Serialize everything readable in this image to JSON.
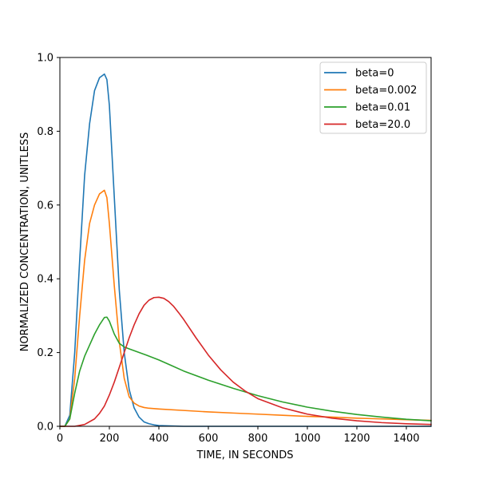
{
  "chart_data": {
    "type": "line",
    "xlabel": "TIME, IN SECONDS",
    "ylabel": "NORMALIZED CONCENTRATION, UNITLESS",
    "xlim": [
      0,
      1500
    ],
    "ylim": [
      0,
      1.0
    ],
    "xticks": [
      0,
      200,
      400,
      600,
      800,
      1000,
      1200,
      1400
    ],
    "yticks": [
      0.0,
      0.2,
      0.4,
      0.6,
      0.8,
      1.0
    ],
    "xtick_labels": [
      "0",
      "200",
      "400",
      "600",
      "800",
      "1000",
      "1200",
      "1400"
    ],
    "ytick_labels": [
      "0.0",
      "0.2",
      "0.4",
      "0.6",
      "0.8",
      "1.0"
    ],
    "grid": false,
    "legend_position": "top-right",
    "series": [
      {
        "name": "beta=0",
        "color": "#1f77b4",
        "x": [
          0,
          20,
          40,
          60,
          80,
          100,
          120,
          140,
          160,
          180,
          190,
          200,
          220,
          240,
          260,
          280,
          300,
          320,
          340,
          360,
          380,
          400,
          450,
          500,
          600,
          800,
          1000,
          1200,
          1400,
          1500
        ],
        "y": [
          0,
          0.0,
          0.03,
          0.2,
          0.45,
          0.68,
          0.82,
          0.91,
          0.945,
          0.955,
          0.94,
          0.87,
          0.62,
          0.37,
          0.2,
          0.1,
          0.05,
          0.025,
          0.012,
          0.007,
          0.004,
          0.002,
          0.001,
          0.0,
          0.0,
          0.0,
          0.0,
          0.0,
          0.0,
          0.0
        ]
      },
      {
        "name": "beta=0.002",
        "color": "#ff7f0e",
        "x": [
          0,
          20,
          40,
          60,
          80,
          100,
          120,
          140,
          160,
          180,
          190,
          200,
          220,
          240,
          260,
          280,
          300,
          320,
          340,
          360,
          400,
          500,
          600,
          700,
          800,
          900,
          1000,
          1100,
          1200,
          1300,
          1400,
          1500
        ],
        "y": [
          0,
          0.0,
          0.02,
          0.13,
          0.3,
          0.45,
          0.55,
          0.6,
          0.63,
          0.64,
          0.62,
          0.55,
          0.38,
          0.23,
          0.13,
          0.08,
          0.063,
          0.055,
          0.051,
          0.049,
          0.047,
          0.043,
          0.039,
          0.036,
          0.033,
          0.03,
          0.027,
          0.025,
          0.022,
          0.02,
          0.018,
          0.016
        ]
      },
      {
        "name": "beta=0.01",
        "color": "#2ca02c",
        "x": [
          0,
          20,
          40,
          60,
          80,
          100,
          120,
          140,
          160,
          180,
          190,
          200,
          220,
          240,
          260,
          280,
          300,
          350,
          400,
          450,
          500,
          600,
          700,
          800,
          900,
          1000,
          1100,
          1200,
          1300,
          1400,
          1500
        ],
        "y": [
          0,
          0.0,
          0.02,
          0.09,
          0.15,
          0.19,
          0.22,
          0.25,
          0.275,
          0.295,
          0.296,
          0.285,
          0.25,
          0.225,
          0.215,
          0.21,
          0.205,
          0.193,
          0.18,
          0.165,
          0.15,
          0.125,
          0.103,
          0.083,
          0.066,
          0.052,
          0.041,
          0.032,
          0.025,
          0.019,
          0.015
        ]
      },
      {
        "name": "beta=20.0",
        "color": "#d62728",
        "x": [
          0,
          60,
          100,
          140,
          160,
          180,
          200,
          220,
          240,
          260,
          280,
          300,
          320,
          340,
          360,
          380,
          400,
          420,
          440,
          460,
          480,
          500,
          550,
          600,
          650,
          700,
          750,
          800,
          900,
          1000,
          1100,
          1200,
          1300,
          1400,
          1500
        ],
        "y": [
          0,
          0.0,
          0.005,
          0.02,
          0.035,
          0.055,
          0.085,
          0.12,
          0.16,
          0.2,
          0.24,
          0.275,
          0.305,
          0.328,
          0.342,
          0.349,
          0.35,
          0.347,
          0.338,
          0.325,
          0.308,
          0.29,
          0.24,
          0.193,
          0.153,
          0.12,
          0.095,
          0.075,
          0.05,
          0.033,
          0.022,
          0.015,
          0.01,
          0.007,
          0.005
        ]
      }
    ]
  }
}
